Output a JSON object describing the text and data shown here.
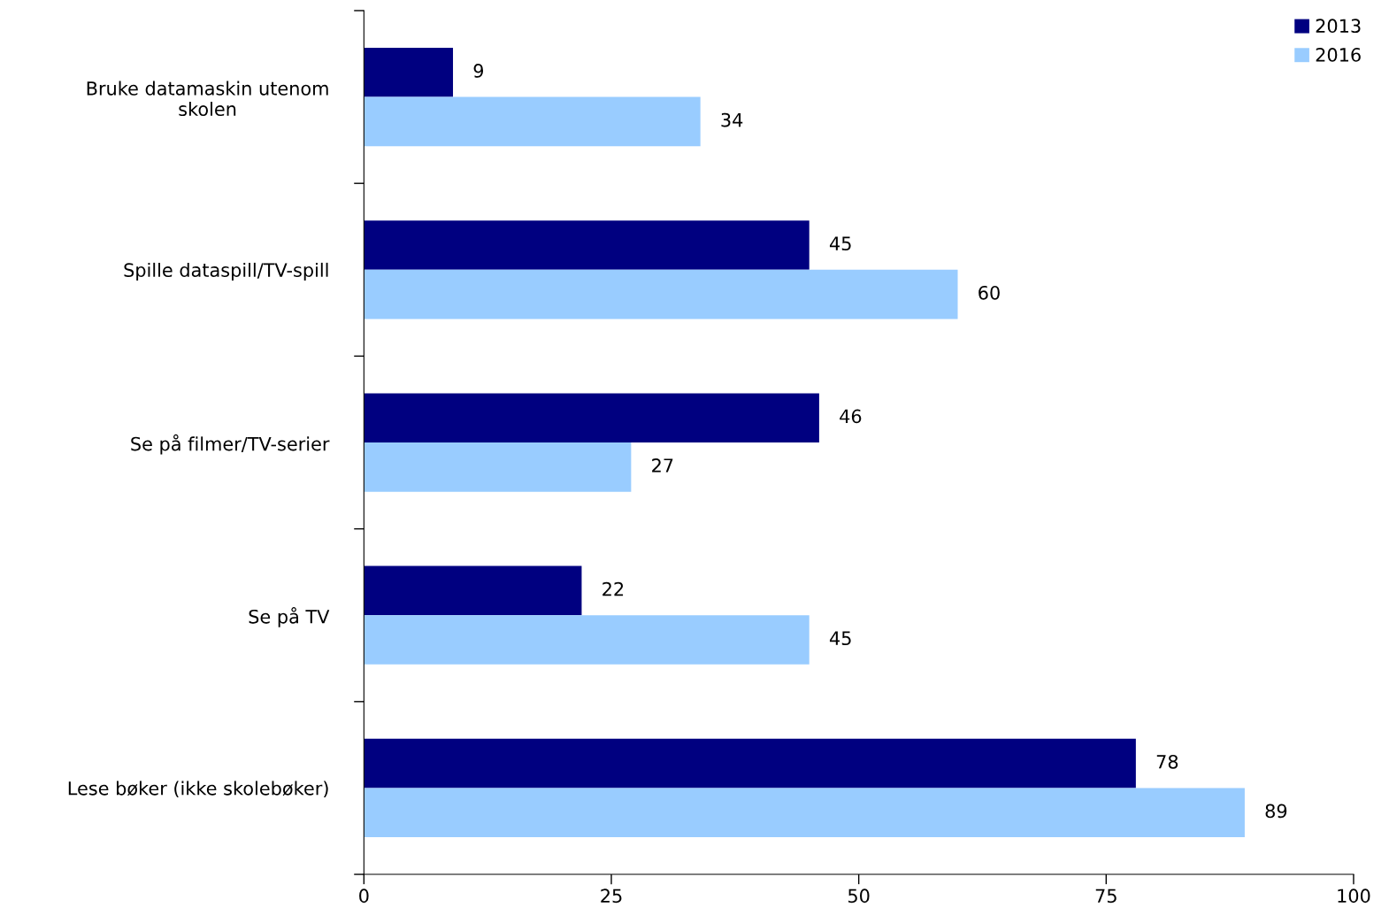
{
  "chart_data": {
    "type": "bar",
    "orientation": "horizontal",
    "categories": [
      "Bruke datamaskin utenom\nskolen",
      "Spille dataspill/TV-spill",
      "Se på filmer/TV-serier",
      "Se på TV",
      "Lese bøker (ikke skolebøker)"
    ],
    "series": [
      {
        "name": "2013",
        "color": "#000080",
        "values": [
          9,
          45,
          46,
          22,
          78
        ]
      },
      {
        "name": "2016",
        "color": "#99ccff",
        "values": [
          34,
          60,
          27,
          45,
          89
        ]
      }
    ],
    "xlim": [
      0,
      100
    ],
    "xticks": [
      0,
      25,
      50,
      75,
      100
    ],
    "data_labels": true,
    "legend": "top right",
    "grid": false
  }
}
